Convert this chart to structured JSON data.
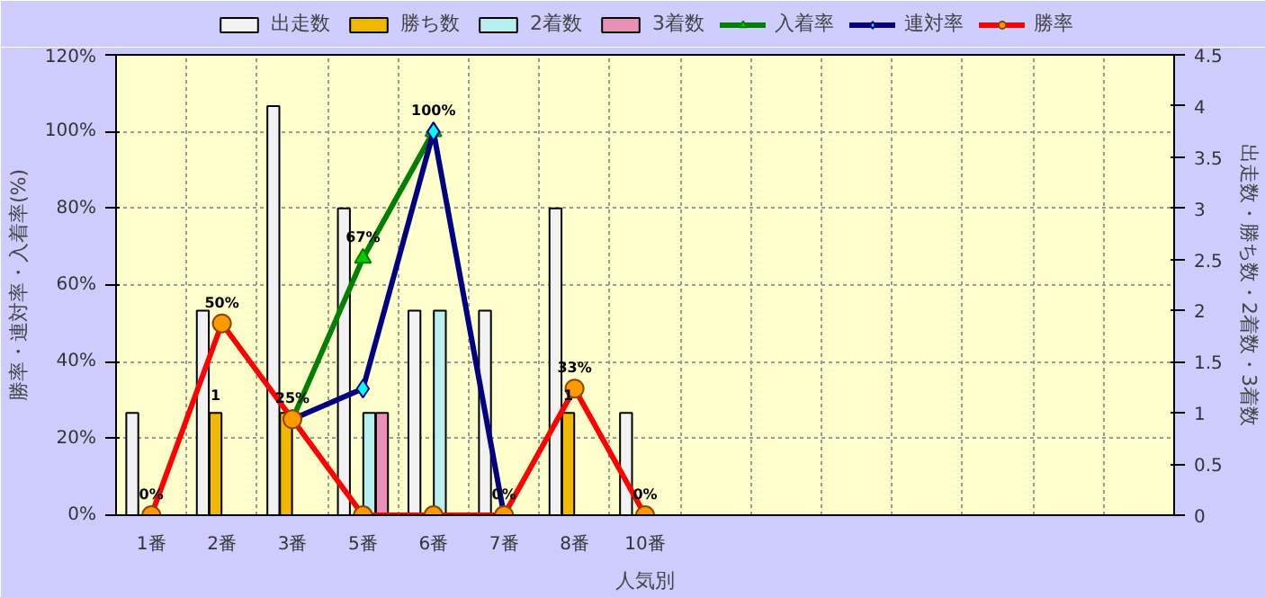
{
  "chart_data": {
    "type": "bar",
    "xlabel": "人気別",
    "ylabel": "勝率・連対率・入着率(%)",
    "y2label": "出走数・勝ち数・2着数・3着数",
    "categories": [
      "1番",
      "2番",
      "3番",
      "5番",
      "6番",
      "7番",
      "8番",
      "10番",
      null,
      null,
      null,
      null,
      null,
      null,
      null
    ],
    "series": [
      {
        "name": "出走数",
        "axis": "y2",
        "color": "#f2f2f2",
        "values": [
          1,
          2,
          4,
          3,
          2,
          2,
          3,
          1,
          null,
          null,
          null,
          null,
          null,
          null,
          null
        ]
      },
      {
        "name": "勝ち数",
        "axis": "y2",
        "color": "#f0b800",
        "values": [
          0,
          1,
          1,
          0,
          0,
          0,
          1,
          0,
          null,
          null,
          null,
          null,
          null,
          null,
          null
        ],
        "value_labels": [
          null,
          "1",
          null,
          null,
          null,
          null,
          "1",
          null,
          null,
          null,
          null,
          null,
          null,
          null,
          null
        ]
      },
      {
        "name": "2着数",
        "axis": "y2",
        "color": "#b8f0f0",
        "values": [
          0,
          0,
          0,
          1,
          2,
          0,
          0,
          0,
          null,
          null,
          null,
          null,
          null,
          null,
          null
        ]
      },
      {
        "name": "3着数",
        "axis": "y2",
        "color": "#e890b8",
        "values": [
          0,
          0,
          0,
          1,
          0,
          0,
          0,
          0,
          null,
          null,
          null,
          null,
          null,
          null,
          null
        ]
      },
      {
        "name": "入着率",
        "type": "line",
        "color": "#008000",
        "marker": "triangle",
        "values": [
          null,
          null,
          25,
          67,
          100,
          null,
          null,
          null,
          null,
          null,
          null,
          null,
          null,
          null,
          null
        ],
        "value_labels": [
          null,
          null,
          null,
          "67%",
          "100%",
          null,
          null,
          null,
          null,
          null,
          null,
          null,
          null,
          null,
          null
        ]
      },
      {
        "name": "連対率",
        "type": "line",
        "color": "#000080",
        "marker": "diamond",
        "values": [
          null,
          null,
          25,
          33,
          100,
          0,
          null,
          null,
          null,
          null,
          null,
          null,
          null,
          null,
          null
        ]
      },
      {
        "name": "勝率",
        "type": "line",
        "color": "#ff0000",
        "marker": "circle",
        "values": [
          0,
          50,
          25,
          0,
          0,
          0,
          33,
          0,
          null,
          null,
          null,
          null,
          null,
          null,
          null
        ],
        "value_labels": [
          "0%",
          "50%",
          "25%",
          null,
          null,
          "0%",
          "33%",
          "0%",
          null,
          null,
          null,
          null,
          null,
          null,
          null
        ]
      }
    ],
    "ylim": [
      0,
      120
    ],
    "yticks": [
      {
        "value": 0,
        "label": "0%"
      },
      {
        "value": 20,
        "label": "20%"
      },
      {
        "value": 40,
        "label": "40%"
      },
      {
        "value": 60,
        "label": "60%"
      },
      {
        "value": 80,
        "label": "80%"
      },
      {
        "value": 100,
        "label": "100%"
      },
      {
        "value": 120,
        "label": "120%"
      }
    ],
    "y2lim": [
      0,
      4.5
    ],
    "y2ticks": [
      0,
      0.5,
      1,
      1.5,
      2,
      2.5,
      3,
      3.5,
      4,
      4.5
    ],
    "grid": true,
    "legend": "top"
  }
}
